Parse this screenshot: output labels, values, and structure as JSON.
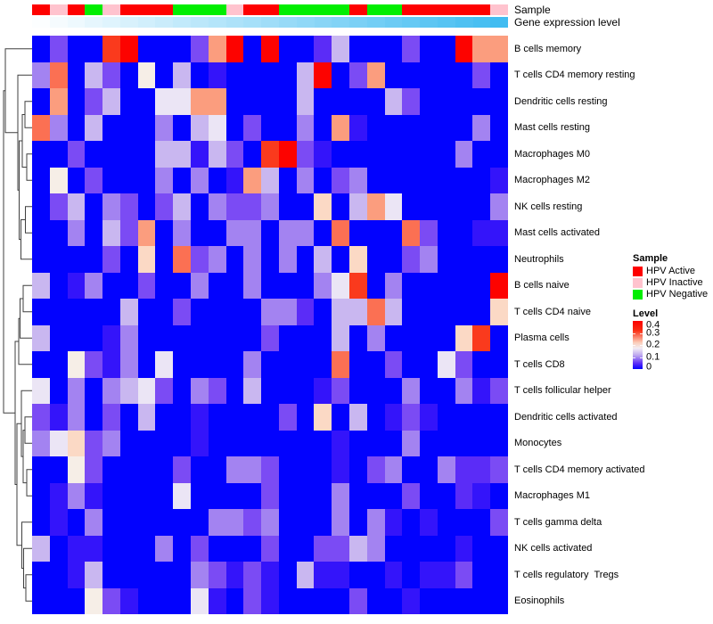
{
  "annotation": {
    "sample_label": "Sample",
    "expression_label": "Gene expression level",
    "sample_group_colors": {
      "HPV Active": "#FE0100",
      "HPV Inactive": "#FFC3CE",
      "HPV Negative": "#01EE01"
    },
    "expression_bar_colors": [
      "#FCFEFF",
      "#F5FBFE",
      "#EEF9FE",
      "#E6F6FD",
      "#DFF4FD",
      "#D8F1FC",
      "#D1EFFC",
      "#CAECFB",
      "#C2EAFB",
      "#BBE7FA",
      "#B4E5FA",
      "#ADE2F9",
      "#A6E0F9",
      "#9FDDF8",
      "#97DAF7",
      "#90D8F7",
      "#89D5F6",
      "#82D3F6",
      "#7BD0F5",
      "#73CEF5",
      "#6CCBF4",
      "#65C9F4",
      "#5EC6F3",
      "#57C4F3",
      "#4FC1F2",
      "#48BFF2",
      "#41BCF1"
    ]
  },
  "legend": {
    "sample_title": "Sample",
    "sample_items": [
      {
        "label": "HPV Active",
        "color": "#FE0100"
      },
      {
        "label": "HPV Inactive",
        "color": "#FFC3CE"
      },
      {
        "label": "HPV Negative",
        "color": "#01EE01"
      }
    ],
    "level_title": "Level",
    "level_ticks": [
      "0.4",
      "0.3",
      "0.2",
      "0.1",
      "0"
    ],
    "level_gradient_stops": [
      "#FB0100 0%",
      "#FA2E14 20%",
      "#FBCDB9 45%",
      "#F2EDF4 57%",
      "#BBA4EF 72%",
      "#5D2EF7 88%",
      "#0602FD 100%"
    ]
  },
  "chart_data": {
    "type": "heatmap",
    "title": "",
    "ylim": [
      0,
      0.4
    ],
    "columns_count": 27,
    "column_sample_group": [
      "HPV Active",
      "HPV Inactive",
      "HPV Active",
      "HPV Negative",
      "HPV Inactive",
      "HPV Active",
      "HPV Active",
      "HPV Active",
      "HPV Negative",
      "HPV Negative",
      "HPV Negative",
      "HPV Inactive",
      "HPV Active",
      "HPV Active",
      "HPV Negative",
      "HPV Negative",
      "HPV Negative",
      "HPV Negative",
      "HPV Active",
      "HPV Negative",
      "HPV Negative",
      "HPV Active",
      "HPV Active",
      "HPV Active",
      "HPV Active",
      "HPV Active",
      "HPV Inactive"
    ],
    "rows": [
      "B cells memory",
      "T cells CD4 memory resting",
      "Dendritic cells resting",
      "Mast cells resting",
      "Macrophages M0",
      "Macrophages M2",
      "NK cells resting",
      "Mast cells activated",
      "Neutrophils",
      "B cells naive",
      "T cells CD4 naive",
      "Plasma cells",
      "T cells CD8",
      "T cells follicular helper",
      "Dendritic cells activated",
      "Monocytes",
      "T cells CD4 memory activated",
      "Macrophages M1",
      "T cells gamma delta",
      "NK cells activated",
      "T cells regulatory  Tregs",
      "Eosinophils"
    ],
    "cell_codes": [
      "B,P3,B,B,R2,R,B,B,B,P3,S2,R,B,R,B,B,P3d,P1,B,B,B,P3,B,B,R,S2,S2",
      "P2,S3,B,P1,P3,B,WP,B,P1,B,B2,B,B,B,B,P1,R,B,P3,S2,B,B,B,B,B,P3,B",
      "B,S2,B,P3,P1,B,B,W,W,S2,S2,B,B,B,B,P1,B,B,B,B,P1,P3,B,B,B,B,B",
      "S3,P2,B,P1,B,B,B,P2,B,P1,W,B,P3,B,B,P2,B,S2,B2,B,B,B,B,B,B,P2,B",
      "B,B,P3,B,B,B,B,P1,P1,B2,P1,P3,B,R2,R,P3,B2,B,B,B,B,B,B,B,P2,B,B",
      "B,WP,B,P3,B,B,B,P2,B,P2,B,B2,S2,P1,B,P2,B,P3,P2,B,B,B,B,B,B,B,B2",
      "B,P3,P1,B,P2,P3,B,P3,P1,B,P2,P3,P3,P2,B,B,S1,B,P1,S2,W,B,B,B,B,B,P2",
      "B,B,P2,B,P1,P3,S2,B,P2,B,B,P2,P2,B,P2,P2,B,S3,B,B,B,S3,P3,B,B,B2,B2",
      "B,B,B,B,P3,B,S1,B,S3,P3,P2,B,P2,B,P2,B,P1,B,S1,B,B,P3,P2,B,B,B,B",
      "P1,B,B2,P2,B,B,P3,B,B,P2,B,B,P2,B,B,B,P2,W,R2,B,P2,B,B,B,B,B,R",
      "B,B,B,B,B,P1,B,B,P3,B,B,B,B,P2,P2,P3d,B,P1,P1,S3,P1,B,B,B,B,B,S1",
      "P1,B,B,B,B2,P2,B,B,B,B,B,B,B,P3,B,B,B,P1,B,P2,B,B,B,B,S1,R2,B",
      "B,B,WP,P3,B2,P2,B,W,B,B,B,B,P2,B,B,B,B,S3,B,B,P3,B,B,W,P3,B,B",
      "W,B,P2,B,P2,P1,W,P3,B,P2,P3,B,P1,B,B,B,B2,P3,B,B,B,P2,B,B,P2,B2,P3",
      "P3,B2,P2,B,P3,B,P1,B,B,B2,B,B,B,B,P3,B,S1,B,P1,B,B2,P3,B2,B,B,B,B",
      "P2,W,S1,P3,P2,B,B,B,B,B2,B,B,B,B,B,B,B,B2,B,B,B,P2,B,B,B,B,B",
      "B,B,WP,P3,B,B,B,B,P3,B,B,P2,P2,P3,B,B,B,B2,B,P3,P2,B,B,P2,P3d,P3d,P3",
      "B,B2,P2,B2,B,B,B,B,W,B,B,B,B,P3,B,B,B,P2,B,B,B,P3,B,B,P3d,B2,B",
      "B,B2,B,P2,B,B,B,B,B,B,P2,P2,P3,P2,B,B,B,P2,B,P2,B2,B,B2,B,B,B,P3",
      "P1,B,B2,B2,B,B,B,P2,B,P3,B,B,B,P3,B,B,P3,P3,P1,P2,B,B,B,B,B2,B,B",
      "B,B,B2,P1,B,B,B,B,B,P2,P3,B2,P3,B2,B,P1,B2,B2,B,B,B2,B,B2,B2,P3,B,B",
      "B,B,B,WP,P3,B2,B,B,B,W,B2,B,P3,B2,B,B,B,B,P3,B,B,B2,B,B,B,B,B"
    ],
    "code_to_color": {
      "B": "#0202FE",
      "B2": "#3414FA",
      "P3d": "#5B2CF7",
      "P3": "#7B4BF4",
      "P2": "#A383F1",
      "P1": "#C9B7F0",
      "W": "#EBE5F5",
      "WP": "#F6EEE7",
      "S1": "#FBD9C5",
      "S2": "#FB9D7E",
      "S3": "#FB7053",
      "R2": "#FA3A1D",
      "R": "#FD0300"
    },
    "code_to_level": {
      "B": 0.0,
      "B2": 0.02,
      "P3d": 0.04,
      "P3": 0.06,
      "P2": 0.08,
      "P1": 0.1,
      "W": 0.13,
      "WP": 0.15,
      "S1": 0.18,
      "S2": 0.21,
      "S3": 0.24,
      "R2": 0.3,
      "R": 0.4
    }
  }
}
